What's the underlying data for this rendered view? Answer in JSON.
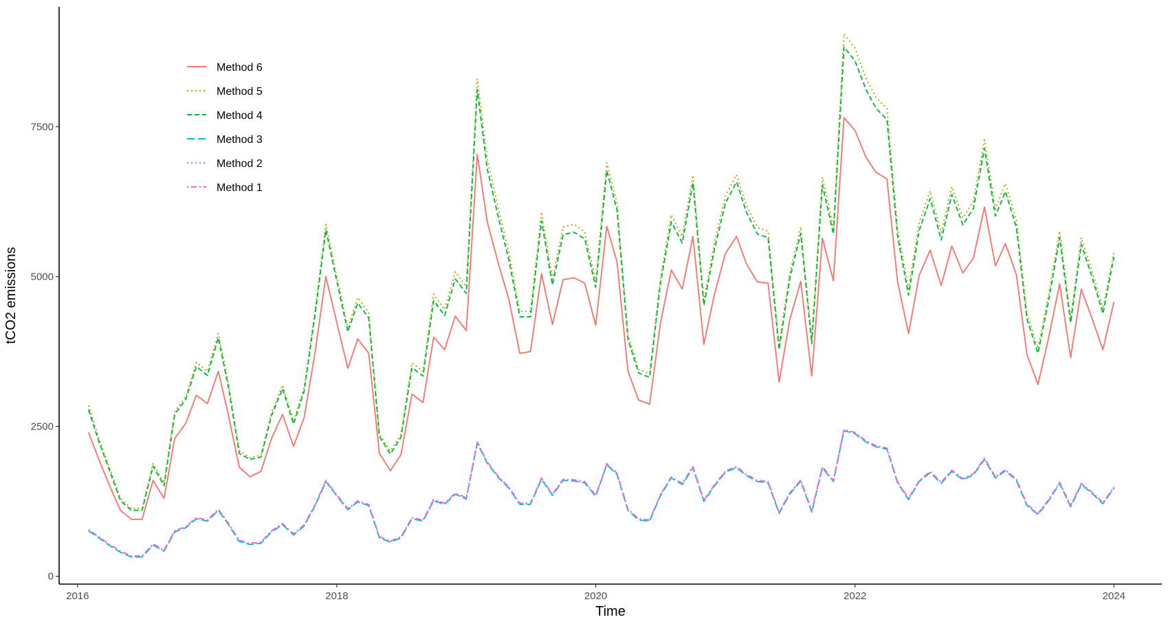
{
  "chart_data": {
    "type": "line",
    "title": "",
    "xlabel": "Time",
    "ylabel": "tCO2 emissions",
    "xlim": [
      "2015-11-10",
      "2024-05-15"
    ],
    "ylim": [
      -130,
      9500
    ],
    "x_ticks": [
      {
        "date": "2016-01-01",
        "label": "2016"
      },
      {
        "date": "2018-01-01",
        "label": "2018"
      },
      {
        "date": "2020-01-01",
        "label": "2020"
      },
      {
        "date": "2022-01-01",
        "label": "2022"
      },
      {
        "date": "2024-01-01",
        "label": "2024"
      }
    ],
    "y_ticks": [
      0,
      2500,
      5000,
      7500
    ],
    "grid": false,
    "legend_position": "top-left",
    "x": [
      "2016-02",
      "2016-03",
      "2016-04",
      "2016-05",
      "2016-06",
      "2016-07",
      "2016-08",
      "2016-09",
      "2016-10",
      "2016-11",
      "2016-12",
      "2017-01",
      "2017-02",
      "2017-03",
      "2017-04",
      "2017-05",
      "2017-06",
      "2017-07",
      "2017-08",
      "2017-09",
      "2017-10",
      "2017-11",
      "2017-12",
      "2018-01",
      "2018-02",
      "2018-03",
      "2018-04",
      "2018-05",
      "2018-06",
      "2018-07",
      "2018-08",
      "2018-09",
      "2018-10",
      "2018-11",
      "2018-12",
      "2019-01",
      "2019-02",
      "2019-03",
      "2019-04",
      "2019-05",
      "2019-06",
      "2019-07",
      "2019-08",
      "2019-09",
      "2019-10",
      "2019-11",
      "2019-12",
      "2020-01",
      "2020-02",
      "2020-03",
      "2020-04",
      "2020-05",
      "2020-06",
      "2020-07",
      "2020-08",
      "2020-09",
      "2020-10",
      "2020-11",
      "2020-12",
      "2021-01",
      "2021-02",
      "2021-03",
      "2021-04",
      "2021-05",
      "2021-06",
      "2021-07",
      "2021-08",
      "2021-09",
      "2021-10",
      "2021-11",
      "2021-12",
      "2022-01",
      "2022-02",
      "2022-03",
      "2022-04",
      "2022-05",
      "2022-06",
      "2022-07",
      "2022-08",
      "2022-09",
      "2022-10",
      "2022-11",
      "2022-12",
      "2023-01",
      "2023-02",
      "2023-03",
      "2023-04",
      "2023-05",
      "2023-06",
      "2023-07",
      "2023-08",
      "2023-09",
      "2023-10",
      "2023-11",
      "2023-12",
      "2024-01"
    ],
    "series": [
      {
        "name": "Method 6",
        "color": "#F8766D",
        "dash": "solid",
        "values": [
          2400,
          1950,
          1500,
          1100,
          950,
          950,
          1600,
          1300,
          2300,
          2550,
          3020,
          2880,
          3420,
          2700,
          1820,
          1660,
          1750,
          2300,
          2700,
          2170,
          2650,
          3750,
          5000,
          4230,
          3470,
          3960,
          3720,
          2050,
          1760,
          2030,
          3040,
          2900,
          3990,
          3780,
          4340,
          4100,
          7040,
          5920,
          5230,
          4620,
          3720,
          3750,
          5050,
          4200,
          4950,
          4980,
          4890,
          4190,
          5840,
          5250,
          3420,
          2940,
          2870,
          4210,
          5110,
          4790,
          5670,
          3870,
          4710,
          5390,
          5670,
          5210,
          4910,
          4890,
          3240,
          4280,
          4920,
          3340,
          5640,
          4930,
          7650,
          7440,
          6990,
          6740,
          6630,
          4920,
          4050,
          5020,
          5440,
          4850,
          5510,
          5060,
          5310,
          6160,
          5180,
          5550,
          5030,
          3700,
          3200,
          3980,
          4880,
          3650,
          4790,
          4290,
          3780,
          4580
        ]
      },
      {
        "name": "Method 5",
        "color": "#B79F00",
        "dash": "dotted",
        "values": [
          2850,
          2300,
          1800,
          1300,
          1130,
          1130,
          1880,
          1560,
          2750,
          3000,
          3570,
          3420,
          4050,
          3240,
          2100,
          1980,
          2020,
          2730,
          3190,
          2590,
          3150,
          4450,
          5870,
          5000,
          4150,
          4650,
          4400,
          2370,
          2090,
          2370,
          3560,
          3420,
          4710,
          4450,
          5080,
          4830,
          8300,
          6970,
          6150,
          5400,
          4420,
          4420,
          6080,
          4960,
          5830,
          5870,
          5750,
          4920,
          6900,
          6230,
          4020,
          3450,
          3380,
          4960,
          6030,
          5670,
          6690,
          4600,
          5580,
          6350,
          6700,
          6180,
          5820,
          5760,
          3860,
          5060,
          5830,
          3950,
          6660,
          5820,
          9050,
          8810,
          8310,
          7990,
          7800,
          5800,
          4800,
          5900,
          6430,
          5730,
          6500,
          5980,
          6260,
          7280,
          6130,
          6550,
          5940,
          4380,
          3800,
          4700,
          5760,
          4320,
          5650,
          5080,
          4460,
          5420
        ]
      },
      {
        "name": "Method 4",
        "color": "#00BA38",
        "dash": "dashed",
        "values": [
          2780,
          2250,
          1750,
          1260,
          1100,
          1100,
          1840,
          1510,
          2700,
          2950,
          3500,
          3350,
          3980,
          3170,
          2050,
          1950,
          1990,
          2680,
          3130,
          2540,
          3090,
          4380,
          5780,
          4920,
          4080,
          4560,
          4310,
          2330,
          2040,
          2320,
          3480,
          3340,
          4600,
          4350,
          4960,
          4720,
          8120,
          6800,
          6000,
          5280,
          4330,
          4330,
          5930,
          4860,
          5700,
          5740,
          5630,
          4820,
          6770,
          6110,
          3950,
          3390,
          3320,
          4870,
          5910,
          5560,
          6560,
          4520,
          5460,
          6230,
          6580,
          6070,
          5710,
          5650,
          3780,
          4970,
          5720,
          3880,
          6530,
          5710,
          8830,
          8600,
          8120,
          7810,
          7620,
          5680,
          4690,
          5770,
          6300,
          5610,
          6370,
          5860,
          6140,
          7140,
          6010,
          6420,
          5820,
          4290,
          3720,
          4600,
          5650,
          4230,
          5540,
          4980,
          4380,
          5330
        ]
      },
      {
        "name": "Method 3",
        "color": "#00BFC4",
        "dash": "longdash",
        "values": [
          760,
          640,
          510,
          400,
          320,
          320,
          520,
          420,
          740,
          810,
          960,
          920,
          1100,
          870,
          580,
          530,
          550,
          740,
          860,
          690,
          840,
          1180,
          1580,
          1340,
          1110,
          1240,
          1180,
          640,
          570,
          640,
          960,
          920,
          1260,
          1200,
          1370,
          1290,
          2220,
          1890,
          1650,
          1470,
          1200,
          1200,
          1620,
          1350,
          1600,
          1590,
          1560,
          1330,
          1860,
          1700,
          1100,
          940,
          920,
          1340,
          1640,
          1530,
          1810,
          1250,
          1510,
          1740,
          1810,
          1680,
          1580,
          1560,
          1050,
          1370,
          1590,
          1070,
          1810,
          1580,
          2430,
          2380,
          2240,
          2160,
          2120,
          1560,
          1280,
          1580,
          1730,
          1550,
          1750,
          1610,
          1690,
          1950,
          1640,
          1760,
          1600,
          1180,
          1030,
          1260,
          1550,
          1160,
          1530,
          1380,
          1210,
          1470
        ]
      },
      {
        "name": "Method 2",
        "color": "#619CFF",
        "dash": "dotted",
        "values": [
          770,
          650,
          520,
          410,
          330,
          330,
          530,
          430,
          750,
          820,
          970,
          930,
          1110,
          880,
          590,
          540,
          560,
          750,
          870,
          700,
          850,
          1190,
          1590,
          1350,
          1120,
          1250,
          1190,
          650,
          580,
          650,
          970,
          930,
          1270,
          1210,
          1380,
          1300,
          2230,
          1900,
          1660,
          1480,
          1210,
          1210,
          1630,
          1360,
          1610,
          1600,
          1570,
          1340,
          1870,
          1710,
          1110,
          950,
          930,
          1350,
          1650,
          1540,
          1820,
          1260,
          1520,
          1750,
          1820,
          1690,
          1590,
          1570,
          1060,
          1380,
          1600,
          1080,
          1820,
          1590,
          2440,
          2390,
          2250,
          2170,
          2130,
          1570,
          1290,
          1590,
          1740,
          1560,
          1760,
          1620,
          1700,
          1960,
          1650,
          1770,
          1610,
          1190,
          1040,
          1270,
          1560,
          1170,
          1540,
          1390,
          1220,
          1480
        ]
      },
      {
        "name": "Method 1",
        "color": "#F564E3",
        "dash": "dotdash",
        "values": [
          780,
          660,
          530,
          420,
          340,
          340,
          540,
          440,
          760,
          830,
          980,
          940,
          1120,
          890,
          600,
          550,
          570,
          760,
          880,
          710,
          860,
          1200,
          1600,
          1360,
          1130,
          1260,
          1200,
          660,
          590,
          660,
          980,
          940,
          1280,
          1220,
          1390,
          1310,
          2240,
          1910,
          1670,
          1490,
          1220,
          1220,
          1640,
          1370,
          1620,
          1610,
          1580,
          1350,
          1880,
          1720,
          1120,
          960,
          940,
          1360,
          1660,
          1550,
          1830,
          1270,
          1530,
          1760,
          1830,
          1700,
          1600,
          1580,
          1070,
          1390,
          1610,
          1090,
          1830,
          1600,
          2450,
          2400,
          2260,
          2180,
          2140,
          1580,
          1300,
          1600,
          1750,
          1570,
          1770,
          1630,
          1710,
          1970,
          1660,
          1780,
          1620,
          1200,
          1050,
          1280,
          1570,
          1180,
          1550,
          1400,
          1230,
          1490
        ]
      }
    ]
  }
}
